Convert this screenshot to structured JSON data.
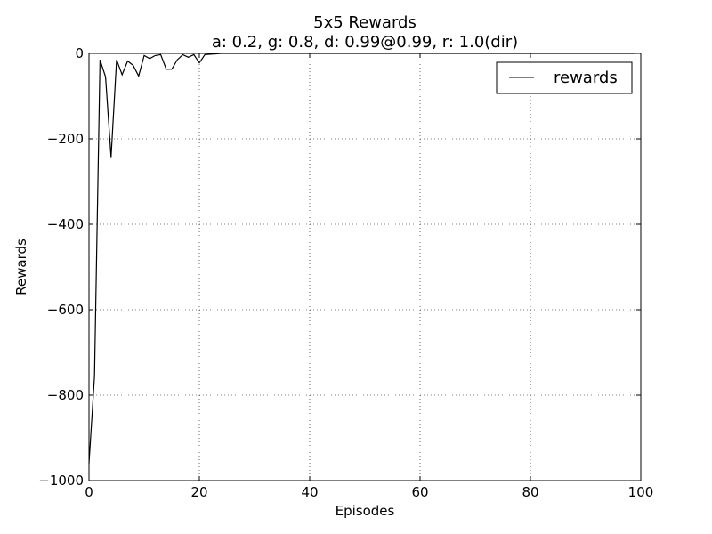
{
  "chart_data": {
    "type": "line",
    "title": "5x5 Rewards",
    "subtitle": "a: 0.2, g: 0.8, d: 0.99@0.99, r: 1.0(dir)",
    "xlabel": "Episodes",
    "ylabel": "Rewards",
    "xlim": [
      0,
      100
    ],
    "ylim": [
      -1000,
      0
    ],
    "xticks": [
      0,
      20,
      40,
      60,
      80,
      100
    ],
    "yticks": [
      0,
      -200,
      -400,
      -600,
      -800,
      -1000
    ],
    "xtick_labels": [
      "0",
      "20",
      "40",
      "60",
      "80",
      "100"
    ],
    "ytick_labels": [
      "0",
      "−200",
      "−400",
      "−600",
      "−800",
      "−1000"
    ],
    "grid": true,
    "legend_position": "top-right",
    "series": [
      {
        "name": "rewards",
        "color": "#000000",
        "x": [
          0,
          1,
          2,
          3,
          4,
          5,
          6,
          7,
          8,
          9,
          10,
          11,
          12,
          13,
          14,
          15,
          16,
          17,
          18,
          19,
          20,
          21,
          22,
          23,
          24,
          25,
          26,
          27,
          28,
          29,
          30,
          31,
          32,
          33,
          34,
          35,
          36,
          37,
          38,
          39,
          40,
          41,
          42,
          43,
          44,
          45,
          46,
          47,
          48,
          49,
          50,
          51,
          52,
          53,
          54,
          55,
          56,
          57,
          58,
          59,
          60,
          61,
          62,
          63,
          64,
          65,
          66,
          67,
          68,
          69,
          70,
          71,
          72,
          73,
          74,
          75,
          76,
          77,
          78,
          79,
          80,
          81,
          82,
          83,
          84,
          85,
          86,
          87,
          88,
          89,
          90,
          91,
          92,
          93,
          94,
          95,
          96,
          97,
          98,
          99
        ],
        "values": [
          -960,
          -755,
          -15,
          -55,
          -243,
          -15,
          -50,
          -18,
          -28,
          -53,
          -5,
          -12,
          -5,
          -3,
          -37,
          -37,
          -15,
          -3,
          -9,
          -3,
          -22,
          -3,
          -2,
          -1,
          0,
          0,
          0,
          0,
          0,
          0,
          0,
          0,
          0,
          0,
          0,
          0,
          0,
          0,
          0,
          0,
          0,
          0,
          0,
          0,
          0,
          0,
          0,
          0,
          0,
          0,
          0,
          0,
          0,
          0,
          0,
          0,
          0,
          0,
          0,
          0,
          0,
          0,
          0,
          0,
          0,
          0,
          0,
          0,
          0,
          0,
          0,
          0,
          0,
          0,
          0,
          0,
          0,
          0,
          0,
          0,
          0,
          0,
          0,
          0,
          0,
          0,
          0,
          0,
          0,
          0,
          0,
          0,
          0,
          0,
          0,
          0,
          0,
          0,
          0,
          0
        ]
      }
    ]
  }
}
